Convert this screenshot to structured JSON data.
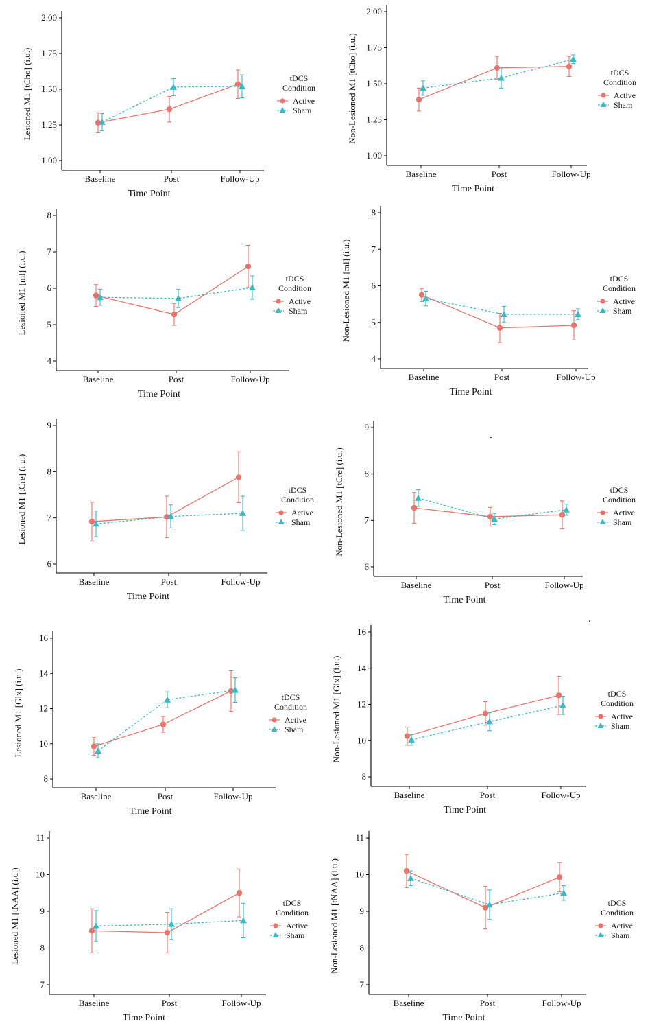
{
  "colors": {
    "active": "#E8756C",
    "sham": "#3DB8C4"
  },
  "legend": {
    "title_line1": "tDCS",
    "title_line2": "Condition",
    "entries": [
      "Active",
      "Sham"
    ]
  },
  "stray_marks": [
    ".",
    "-"
  ],
  "chart_data": [
    {
      "type": "line",
      "title": "",
      "xlabel": "Time Point",
      "ylabel": "Lesioned M1 [tCho] (i.u.)",
      "categories": [
        "Baseline",
        "Post",
        "Follow-Up"
      ],
      "ylim": [
        1.0,
        2.0
      ],
      "yticks": [
        "1.00",
        "1.25",
        "1.50",
        "1.75",
        "2.00"
      ],
      "series": [
        {
          "name": "Active",
          "values": [
            1.265,
            1.36,
            1.535
          ],
          "err": [
            0.07,
            0.09,
            0.1
          ]
        },
        {
          "name": "Sham",
          "values": [
            1.27,
            1.515,
            1.52
          ],
          "err": [
            0.06,
            0.06,
            0.08
          ]
        }
      ]
    },
    {
      "type": "line",
      "title": "",
      "xlabel": "Time Point",
      "ylabel": "Non-Lesioned M1 [tCho] (i.u.)",
      "categories": [
        "Baseline",
        "Post",
        "Follow-Up"
      ],
      "ylim": [
        1.0,
        2.0
      ],
      "yticks": [
        "1.00",
        "1.25",
        "1.50",
        "1.75",
        "2.00"
      ],
      "series": [
        {
          "name": "Active",
          "values": [
            1.39,
            1.61,
            1.62
          ],
          "err": [
            0.08,
            0.08,
            0.07
          ]
        },
        {
          "name": "Sham",
          "values": [
            1.47,
            1.54,
            1.67
          ],
          "err": [
            0.05,
            0.07,
            0.03
          ]
        }
      ]
    },
    {
      "type": "line",
      "title": "",
      "xlabel": "Time Point",
      "ylabel": "Lesioned M1 [ml] (i.u.)",
      "categories": [
        "Baseline",
        "Post",
        "Follow-Up"
      ],
      "ylim": [
        4,
        8
      ],
      "yticks": [
        "4",
        "5",
        "6",
        "7",
        "8"
      ],
      "series": [
        {
          "name": "Active",
          "values": [
            5.8,
            5.28,
            6.6
          ],
          "err": [
            0.3,
            0.3,
            0.58
          ]
        },
        {
          "name": "Sham",
          "values": [
            5.75,
            5.72,
            6.02
          ],
          "err": [
            0.22,
            0.25,
            0.32
          ]
        }
      ]
    },
    {
      "type": "line",
      "title": "",
      "xlabel": "Time Point",
      "ylabel": "Non-Lesioned M1 [ml] (i.u.)",
      "categories": [
        "Baseline",
        "Post",
        "Follow-Up"
      ],
      "ylim": [
        4,
        8
      ],
      "yticks": [
        "4",
        "5",
        "6",
        "7",
        "8"
      ],
      "series": [
        {
          "name": "Active",
          "values": [
            5.75,
            4.85,
            4.92
          ],
          "err": [
            0.18,
            0.4,
            0.4
          ]
        },
        {
          "name": "Sham",
          "values": [
            5.65,
            5.22,
            5.22
          ],
          "err": [
            0.2,
            0.22,
            0.15
          ]
        }
      ]
    },
    {
      "type": "line",
      "title": "",
      "xlabel": "Time Point",
      "ylabel": "Lesioned M1 [tCre] (i.u.)",
      "categories": [
        "Baseline",
        "Post",
        "Follow-Up"
      ],
      "ylim": [
        6,
        9
      ],
      "yticks": [
        "6",
        "7",
        "8",
        "9"
      ],
      "series": [
        {
          "name": "Active",
          "values": [
            6.92,
            7.02,
            7.88
          ],
          "err": [
            0.42,
            0.45,
            0.55
          ]
        },
        {
          "name": "Sham",
          "values": [
            6.87,
            7.03,
            7.1
          ],
          "err": [
            0.28,
            0.25,
            0.37
          ]
        }
      ]
    },
    {
      "type": "line",
      "title": "",
      "xlabel": "Time Point",
      "ylabel": "Non-Lesioned M1 [tCre] (i.u.)",
      "categories": [
        "Baseline",
        "Post",
        "Follow-Up"
      ],
      "ylim": [
        6,
        9
      ],
      "yticks": [
        "6",
        "7",
        "8",
        "9"
      ],
      "series": [
        {
          "name": "Active",
          "values": [
            7.27,
            7.08,
            7.12
          ],
          "err": [
            0.33,
            0.2,
            0.3
          ]
        },
        {
          "name": "Sham",
          "values": [
            7.48,
            7.03,
            7.23
          ],
          "err": [
            0.18,
            0.12,
            0.12
          ]
        }
      ]
    },
    {
      "type": "line",
      "title": "",
      "xlabel": "Time Point",
      "ylabel": "Lesioned M1 [Glx] (i.u.)",
      "categories": [
        "Baseline",
        "Post",
        "Follow-Up"
      ],
      "ylim": [
        8,
        16
      ],
      "yticks": [
        "8",
        "10",
        "12",
        "14",
        "16"
      ],
      "series": [
        {
          "name": "Active",
          "values": [
            9.85,
            11.1,
            13.0
          ],
          "err": [
            0.5,
            0.45,
            1.15
          ]
        },
        {
          "name": "Sham",
          "values": [
            9.6,
            12.5,
            13.05
          ],
          "err": [
            0.4,
            0.45,
            0.7
          ]
        }
      ]
    },
    {
      "type": "line",
      "title": "",
      "xlabel": "Time Point",
      "ylabel": "Non-Lesioned M1 [Glx] (i.u.)",
      "categories": [
        "Baseline",
        "Post",
        "Follow-Up"
      ],
      "ylim": [
        8,
        16
      ],
      "yticks": [
        "8",
        "10",
        "12",
        "14",
        "16"
      ],
      "series": [
        {
          "name": "Active",
          "values": [
            10.25,
            11.5,
            12.5
          ],
          "err": [
            0.5,
            0.65,
            1.05
          ]
        },
        {
          "name": "Sham",
          "values": [
            10.05,
            11.05,
            11.95
          ],
          "err": [
            0.3,
            0.5,
            0.5
          ]
        }
      ]
    },
    {
      "type": "line",
      "title": "",
      "xlabel": "Time Point",
      "ylabel": "Lesioned M1 [tNAA] (i.u.)",
      "categories": [
        "Baseline",
        "Post",
        "Follow-Up"
      ],
      "ylim": [
        7,
        11
      ],
      "yticks": [
        "7",
        "8",
        "9",
        "10",
        "11"
      ],
      "series": [
        {
          "name": "Active",
          "values": [
            8.47,
            8.42,
            9.5
          ],
          "err": [
            0.6,
            0.55,
            0.65
          ]
        },
        {
          "name": "Sham",
          "values": [
            8.6,
            8.65,
            8.75
          ],
          "err": [
            0.42,
            0.42,
            0.47
          ]
        }
      ]
    },
    {
      "type": "line",
      "title": "",
      "xlabel": "Time Point",
      "ylabel": "Non-Lesioned M1 [tNAA] (i.u.)",
      "categories": [
        "Baseline",
        "Post",
        "Follow-Up"
      ],
      "ylim": [
        7,
        11
      ],
      "yticks": [
        "7",
        "8",
        "9",
        "10",
        "11"
      ],
      "series": [
        {
          "name": "Active",
          "values": [
            10.1,
            9.1,
            9.93
          ],
          "err": [
            0.45,
            0.58,
            0.4
          ]
        },
        {
          "name": "Sham",
          "values": [
            9.9,
            9.18,
            9.5
          ],
          "err": [
            0.2,
            0.4,
            0.2
          ]
        }
      ]
    }
  ]
}
